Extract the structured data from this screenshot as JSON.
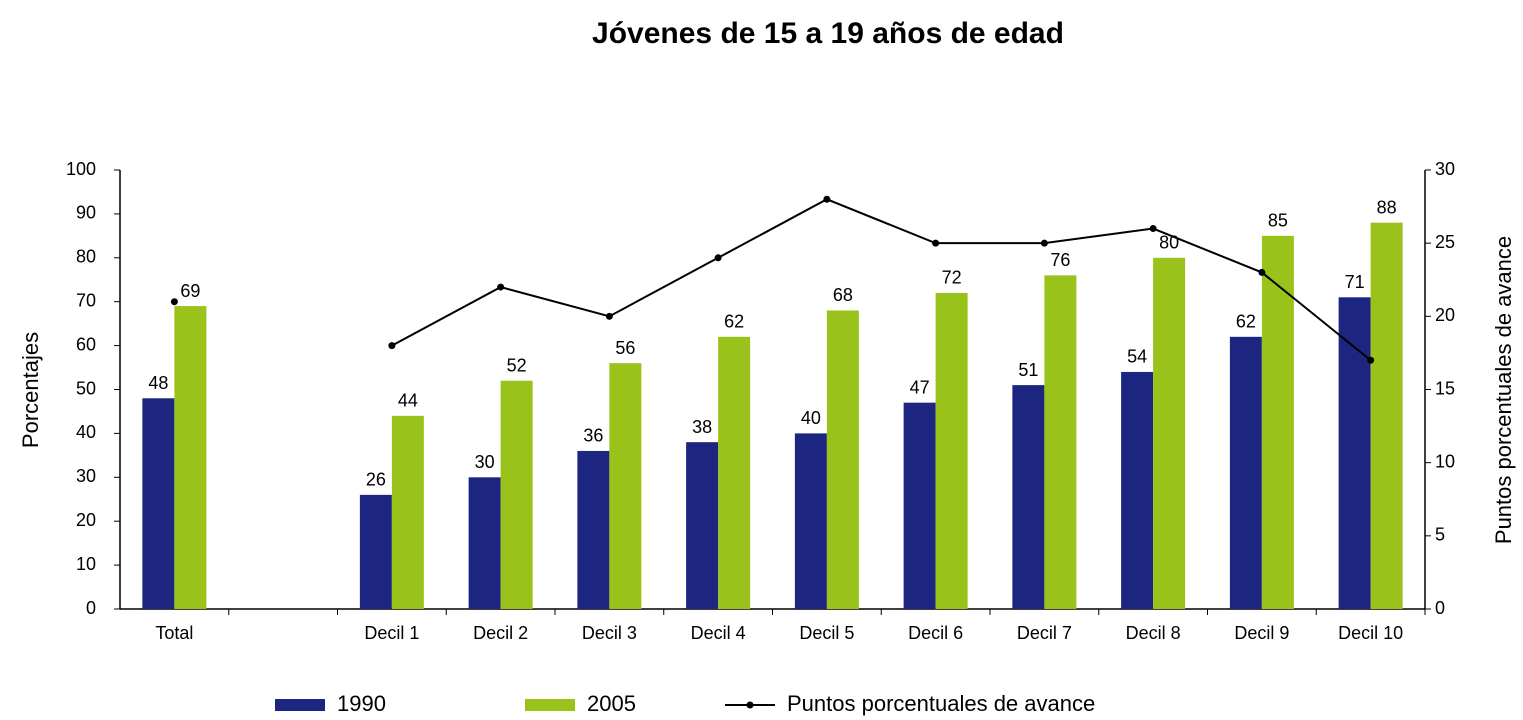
{
  "chart_data": {
    "type": "bar",
    "title": "Jóvenes de 15 a 19 años de edad",
    "ylabel": "Porcentajes",
    "y2label": "Puntos porcentuales de avance",
    "categories": [
      "Total",
      null,
      "Decil 1",
      "Decil 2",
      "Decil 3",
      "Decil 4",
      "Decil 5",
      "Decil 6",
      "Decil 7",
      "Decil 8",
      "Decil 9",
      "Decil 10"
    ],
    "series": [
      {
        "name": "1990",
        "type": "bar",
        "color": "#1c2580",
        "values": [
          48,
          null,
          26,
          30,
          36,
          38,
          40,
          47,
          51,
          54,
          62,
          71
        ]
      },
      {
        "name": "2005",
        "type": "bar",
        "color": "#99c21a",
        "values": [
          69,
          null,
          44,
          52,
          56,
          62,
          68,
          72,
          76,
          80,
          85,
          88
        ]
      },
      {
        "name": "Puntos porcentuales de avance",
        "type": "line",
        "axis": "y2",
        "color": "#000000",
        "values": [
          21,
          null,
          18,
          22,
          20,
          24,
          28,
          25,
          25,
          26,
          23,
          17
        ]
      }
    ],
    "ylim": [
      0,
      100
    ],
    "yticks": [
      0,
      10,
      20,
      30,
      40,
      50,
      60,
      70,
      80,
      90,
      100
    ],
    "y2lim": [
      0,
      30
    ],
    "y2ticks": [
      0,
      5,
      10,
      15,
      20,
      25,
      30
    ],
    "grid": false,
    "legend": "bottom"
  }
}
